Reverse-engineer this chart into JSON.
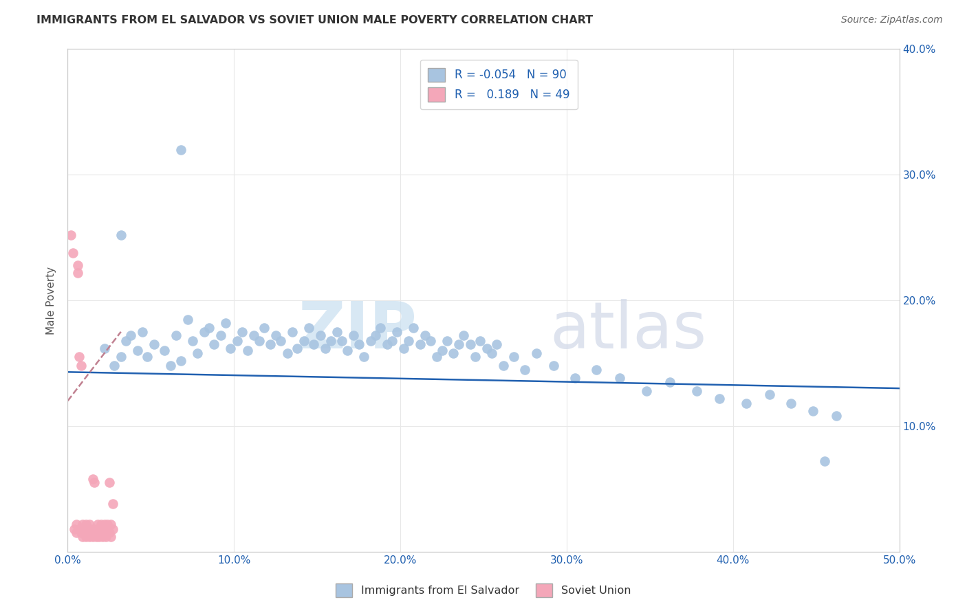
{
  "title": "IMMIGRANTS FROM EL SALVADOR VS SOVIET UNION MALE POVERTY CORRELATION CHART",
  "source": "Source: ZipAtlas.com",
  "ylabel": "Male Poverty",
  "xlim": [
    0.0,
    0.5
  ],
  "ylim": [
    0.0,
    0.4
  ],
  "xticks": [
    0.0,
    0.1,
    0.2,
    0.3,
    0.4,
    0.5
  ],
  "yticks": [
    0.0,
    0.1,
    0.2,
    0.3,
    0.4
  ],
  "xtick_labels": [
    "0.0%",
    "10.0%",
    "20.0%",
    "30.0%",
    "40.0%",
    "50.0%"
  ],
  "ytick_labels_right": [
    "",
    "10.0%",
    "20.0%",
    "30.0%",
    "40.0%"
  ],
  "legend_labels": [
    "Immigrants from El Salvador",
    "Soviet Union"
  ],
  "blue_color": "#a8c4e0",
  "pink_color": "#f4a7b9",
  "trend_blue_color": "#2060b0",
  "trend_pink_color": "#c08090",
  "R_blue": -0.054,
  "N_blue": 90,
  "R_pink": 0.189,
  "N_pink": 49,
  "blue_x": [
    0.022,
    0.028,
    0.032,
    0.035,
    0.038,
    0.042,
    0.045,
    0.048,
    0.052,
    0.058,
    0.062,
    0.065,
    0.068,
    0.072,
    0.075,
    0.078,
    0.082,
    0.085,
    0.088,
    0.092,
    0.095,
    0.098,
    0.102,
    0.105,
    0.108,
    0.112,
    0.115,
    0.118,
    0.122,
    0.125,
    0.128,
    0.132,
    0.135,
    0.138,
    0.142,
    0.145,
    0.148,
    0.152,
    0.155,
    0.158,
    0.162,
    0.165,
    0.168,
    0.172,
    0.175,
    0.178,
    0.182,
    0.185,
    0.188,
    0.192,
    0.195,
    0.198,
    0.202,
    0.205,
    0.208,
    0.212,
    0.215,
    0.218,
    0.222,
    0.225,
    0.228,
    0.232,
    0.235,
    0.238,
    0.242,
    0.245,
    0.248,
    0.252,
    0.255,
    0.258,
    0.262,
    0.268,
    0.275,
    0.282,
    0.292,
    0.305,
    0.318,
    0.332,
    0.348,
    0.362,
    0.378,
    0.392,
    0.408,
    0.422,
    0.435,
    0.448,
    0.462,
    0.032,
    0.068,
    0.455
  ],
  "blue_y": [
    0.162,
    0.148,
    0.155,
    0.168,
    0.172,
    0.16,
    0.175,
    0.155,
    0.165,
    0.16,
    0.148,
    0.172,
    0.152,
    0.185,
    0.168,
    0.158,
    0.175,
    0.178,
    0.165,
    0.172,
    0.182,
    0.162,
    0.168,
    0.175,
    0.16,
    0.172,
    0.168,
    0.178,
    0.165,
    0.172,
    0.168,
    0.158,
    0.175,
    0.162,
    0.168,
    0.178,
    0.165,
    0.172,
    0.162,
    0.168,
    0.175,
    0.168,
    0.16,
    0.172,
    0.165,
    0.155,
    0.168,
    0.172,
    0.178,
    0.165,
    0.168,
    0.175,
    0.162,
    0.168,
    0.178,
    0.165,
    0.172,
    0.168,
    0.155,
    0.16,
    0.168,
    0.158,
    0.165,
    0.172,
    0.165,
    0.155,
    0.168,
    0.162,
    0.158,
    0.165,
    0.148,
    0.155,
    0.145,
    0.158,
    0.148,
    0.138,
    0.145,
    0.138,
    0.128,
    0.135,
    0.128,
    0.122,
    0.118,
    0.125,
    0.118,
    0.112,
    0.108,
    0.252,
    0.32,
    0.072
  ],
  "pink_x": [
    0.002,
    0.003,
    0.004,
    0.005,
    0.005,
    0.006,
    0.006,
    0.007,
    0.007,
    0.008,
    0.008,
    0.009,
    0.009,
    0.01,
    0.01,
    0.011,
    0.011,
    0.012,
    0.012,
    0.013,
    0.013,
    0.014,
    0.014,
    0.015,
    0.015,
    0.016,
    0.016,
    0.017,
    0.017,
    0.018,
    0.018,
    0.019,
    0.019,
    0.02,
    0.02,
    0.021,
    0.021,
    0.022,
    0.022,
    0.023,
    0.023,
    0.024,
    0.024,
    0.025,
    0.025,
    0.026,
    0.026,
    0.027,
    0.027
  ],
  "pink_y": [
    0.252,
    0.238,
    0.018,
    0.015,
    0.022,
    0.228,
    0.222,
    0.018,
    0.155,
    0.015,
    0.148,
    0.012,
    0.022,
    0.018,
    0.015,
    0.012,
    0.022,
    0.018,
    0.015,
    0.012,
    0.022,
    0.018,
    0.015,
    0.058,
    0.012,
    0.055,
    0.018,
    0.015,
    0.012,
    0.022,
    0.018,
    0.015,
    0.012,
    0.022,
    0.018,
    0.015,
    0.012,
    0.022,
    0.018,
    0.015,
    0.012,
    0.022,
    0.018,
    0.055,
    0.015,
    0.012,
    0.022,
    0.018,
    0.038
  ],
  "watermark_zip": "ZIP",
  "watermark_atlas": "atlas",
  "background_color": "#ffffff",
  "grid_color": "#e8e8e8"
}
